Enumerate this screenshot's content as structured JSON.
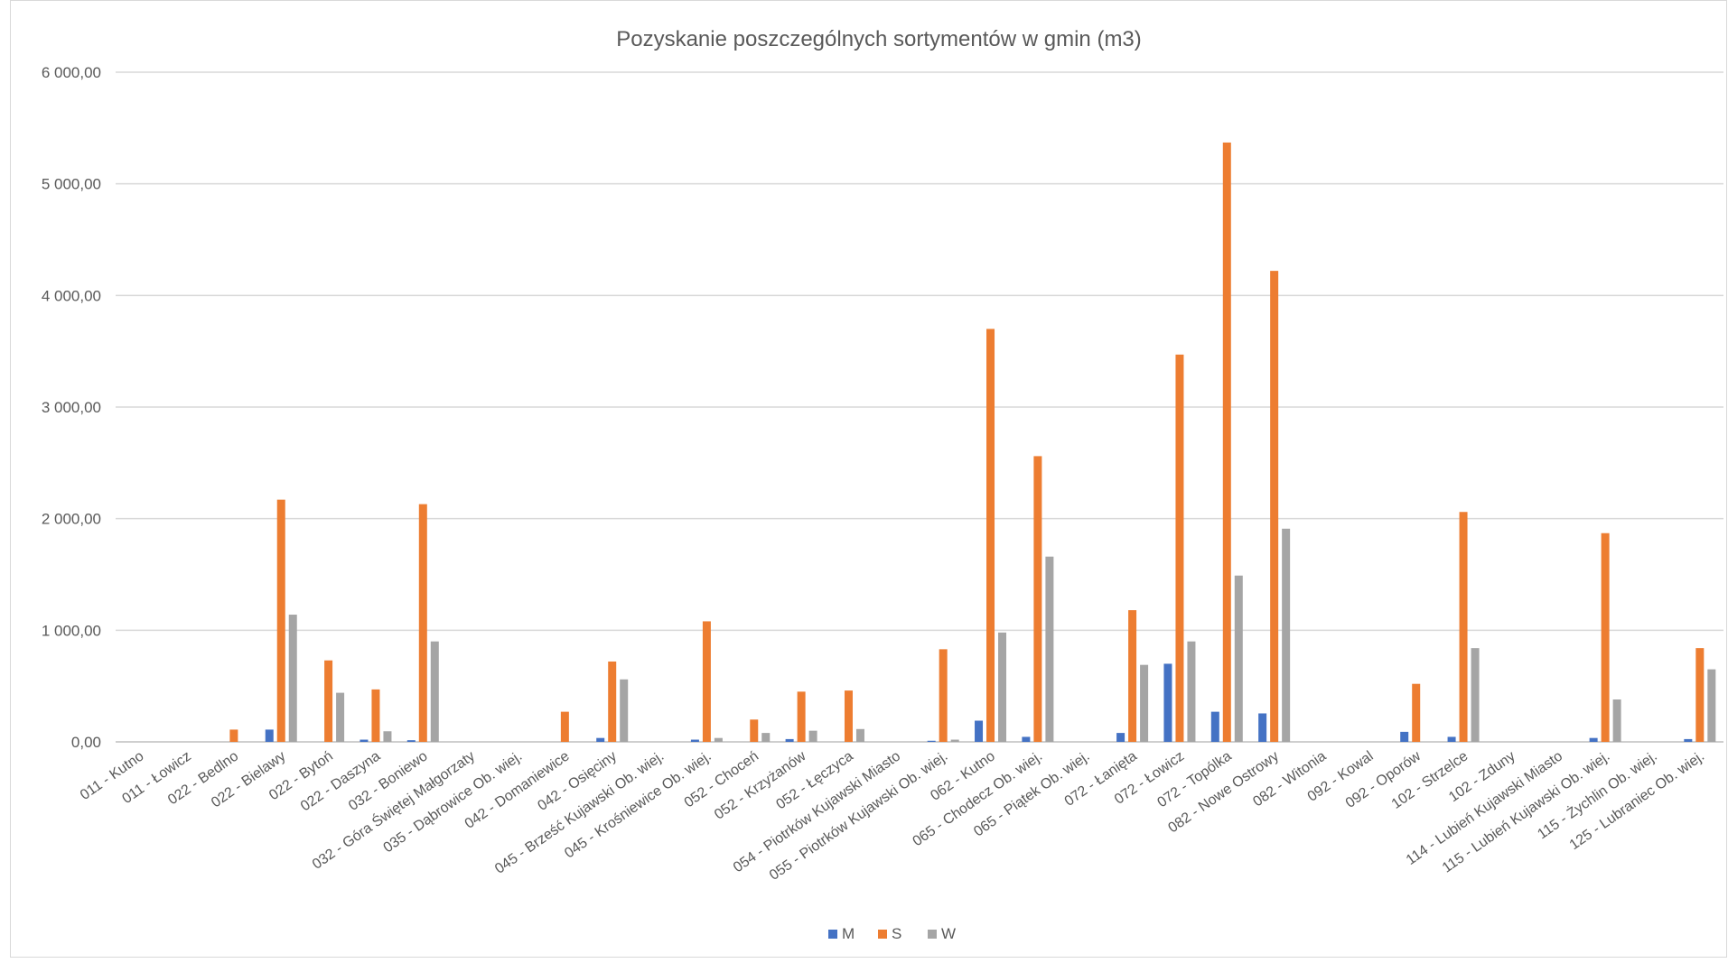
{
  "chart_data": {
    "type": "bar",
    "title": "Pozyskanie poszczególnych sortymentów w gmin (m3)",
    "xlabel": "",
    "ylabel": "",
    "ylim": [
      0,
      6000
    ],
    "yticks": [
      0,
      1000,
      2000,
      3000,
      4000,
      5000,
      6000
    ],
    "ytick_labels": [
      "0,00",
      "1 000,00",
      "2 000,00",
      "3 000,00",
      "4 000,00",
      "5 000,00",
      "6 000,00"
    ],
    "grid": true,
    "legend_position": "bottom",
    "categories": [
      "011 - Kutno",
      "011 - Łowicz",
      "022 - Bedlno",
      "022 - Bielawy",
      "022 - Bytoń",
      "022 - Daszyna",
      "032 - Boniewo",
      "032 - Góra Świętej Małgorzaty",
      "035 - Dąbrowice Ob. wiej.",
      "042 - Domaniewice",
      "042 - Osięciny",
      "045 - Brześć Kujawski Ob. wiej.",
      "045 - Krośniewice Ob. wiej.",
      "052 - Choceń",
      "052 - Krzyżanów",
      "052 - Łęczyca",
      "054 - Piotrków Kujawski Miasto",
      "055 - Piotrków Kujawski Ob. wiej.",
      "062 - Kutno",
      "065 - Chodecz Ob. wiej.",
      "065 - Piątek Ob. wiej.",
      "072 - Łanięta",
      "072 - Łowicz",
      "072 - Topólka",
      "082 - Nowe Ostrowy",
      "082 - Witonia",
      "092 - Kowal",
      "092 - Oporów",
      "102 - Strzelce",
      "102 - Zduny",
      "114 - Lubień Kujawski Miasto",
      "115 - Lubień Kujawski Ob. wiej.",
      "115 - Żychlin Ob. wiej.",
      "125 - Lubraniec Ob. wiej."
    ],
    "series": [
      {
        "name": "M",
        "color": "#4472c4",
        "values": [
          0,
          0,
          0,
          110,
          0,
          20,
          15,
          0,
          0,
          0,
          35,
          0,
          20,
          0,
          25,
          0,
          0,
          10,
          190,
          45,
          0,
          80,
          700,
          270,
          255,
          0,
          0,
          90,
          45,
          0,
          0,
          35,
          0,
          25
        ]
      },
      {
        "name": "S",
        "color": "#ed7d31",
        "values": [
          0,
          0,
          110,
          2170,
          730,
          470,
          2130,
          0,
          0,
          270,
          720,
          0,
          1080,
          200,
          450,
          460,
          0,
          830,
          3700,
          2560,
          0,
          1180,
          3470,
          5370,
          4220,
          0,
          0,
          520,
          2060,
          0,
          0,
          1870,
          0,
          840
        ]
      },
      {
        "name": "W",
        "color": "#a5a5a5",
        "values": [
          0,
          0,
          0,
          1140,
          440,
          95,
          900,
          0,
          0,
          0,
          560,
          0,
          35,
          80,
          100,
          115,
          0,
          20,
          980,
          1660,
          0,
          690,
          900,
          1490,
          1910,
          0,
          0,
          0,
          840,
          0,
          0,
          380,
          0,
          650
        ]
      }
    ]
  }
}
